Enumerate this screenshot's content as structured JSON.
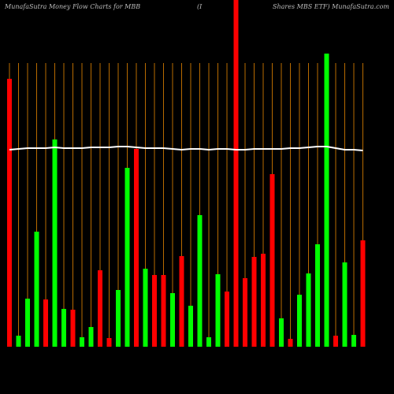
{
  "chart_data": {
    "type": "bar",
    "title_parts": [
      "MunafaSutra  Money Flow  Charts for MBB",
      "(I",
      "Shares MBS ETF) MunafaSutra.com"
    ],
    "values": [
      340,
      14,
      61,
      146,
      60,
      263,
      48,
      47,
      12,
      25,
      97,
      11,
      72,
      227,
      251,
      99,
      91,
      91,
      68,
      115,
      52,
      167,
      12,
      92,
      70,
      440,
      87,
      114,
      118,
      219,
      36,
      10,
      66,
      93,
      130,
      372,
      14,
      107,
      15,
      135
    ],
    "colors": [
      "#ff0000",
      "#00ff00",
      "#00ff00",
      "#00ff00",
      "#ff0000",
      "#00ff00",
      "#00ff00",
      "#ff0000",
      "#00ff00",
      "#00ff00",
      "#ff0000",
      "#ff0000",
      "#00ff00",
      "#00ff00",
      "#ff0000",
      "#00ff00",
      "#ff0000",
      "#ff0000",
      "#00ff00",
      "#ff0000",
      "#00ff00",
      "#00ff00",
      "#00ff00",
      "#00ff00",
      "#ff0000",
      "#ff0000",
      "#ff0000",
      "#ff0000",
      "#ff0000",
      "#ff0000",
      "#00ff00",
      "#ff0000",
      "#00ff00",
      "#00ff00",
      "#00ff00",
      "#00ff00",
      "#ff0000",
      "#00ff00",
      "#00ff00",
      "#ff0000"
    ],
    "line": {
      "color": "#ffffff",
      "values": [
        250,
        251,
        252,
        252,
        252,
        253,
        252,
        252,
        252,
        253,
        253,
        253,
        254,
        254,
        253,
        252,
        252,
        252,
        251,
        250,
        251,
        251,
        250,
        251,
        251,
        250,
        250,
        251,
        251,
        251,
        251,
        252,
        252,
        253,
        254,
        254,
        252,
        250,
        250,
        249
      ]
    },
    "ylim": [
      0,
      440
    ],
    "grid": true,
    "grid_color": "#b86b00"
  }
}
